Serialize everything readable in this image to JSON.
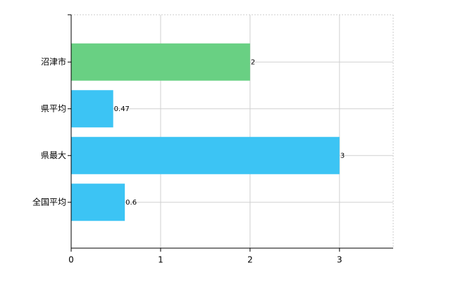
{
  "chart_data": {
    "type": "bar",
    "orientation": "horizontal",
    "categories": [
      "沼津市",
      "県平均",
      "県最大",
      "全国平均"
    ],
    "values": [
      2,
      0.47,
      3,
      0.6
    ],
    "colors": [
      "#69d083",
      "#3cc4f4",
      "#3cc4f4",
      "#3cc4f4"
    ],
    "xlim": [
      0,
      3.6
    ],
    "xticks": [
      0,
      1,
      2,
      3
    ],
    "grid": true
  }
}
